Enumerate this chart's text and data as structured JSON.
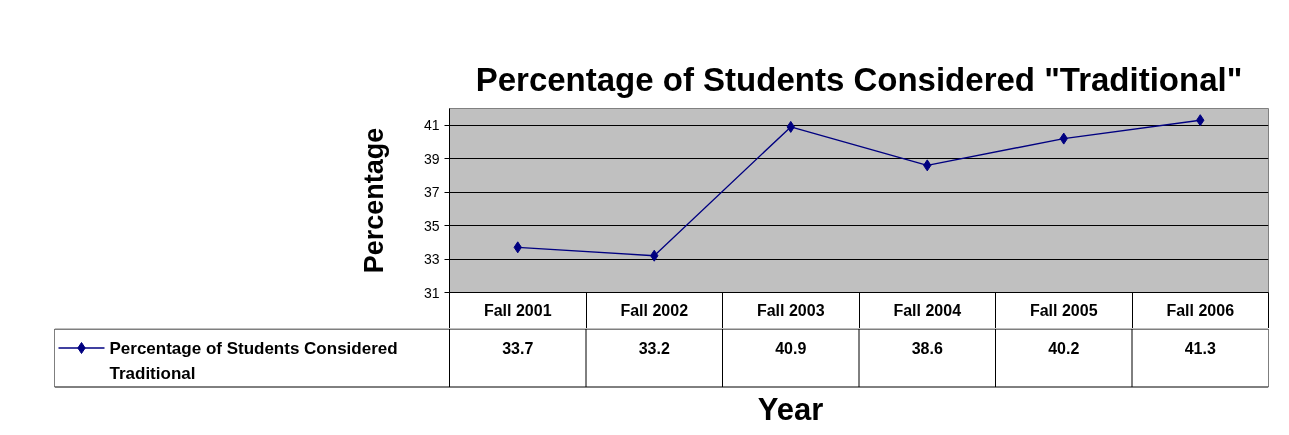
{
  "chart_data": {
    "type": "line",
    "title": "Percentage of Students Considered \"Traditional\"",
    "xlabel": "Year",
    "ylabel": "Percentage",
    "categories": [
      "Fall 2001",
      "Fall 2002",
      "Fall 2003",
      "Fall 2004",
      "Fall 2005",
      "Fall 2006"
    ],
    "series": [
      {
        "name": "Percentage of Students Considered Traditional",
        "color": "#000080",
        "values": [
          33.7,
          33.2,
          40.9,
          38.6,
          40.2,
          41.3
        ]
      }
    ],
    "ylim": [
      31,
      42
    ],
    "yticks": [
      31,
      33,
      35,
      37,
      39,
      41
    ],
    "grid": "y",
    "legend": "bottom",
    "marker": "diamond",
    "line_style": "solid",
    "data_labels": true
  }
}
